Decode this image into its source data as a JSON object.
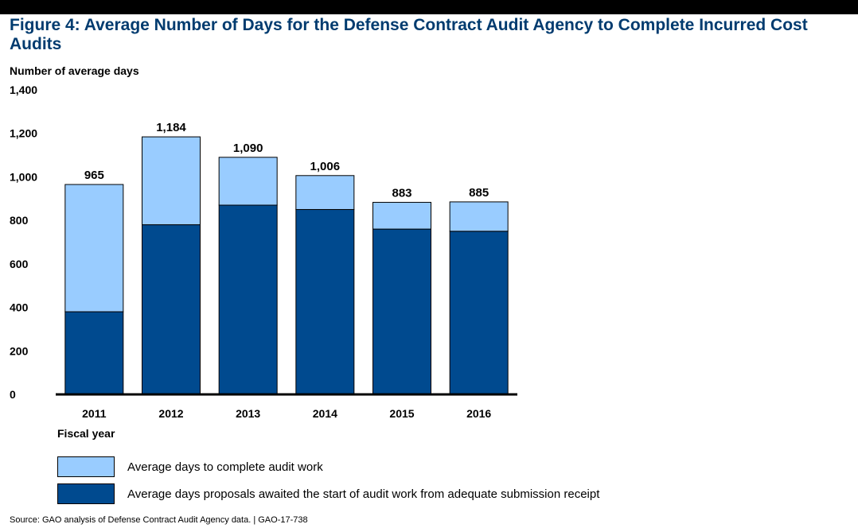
{
  "figure": {
    "title": "Figure 4: Average Number of Days for the Defense Contract Audit Agency to Complete Incurred Cost Audits",
    "source": "Source: GAO analysis of Defense Contract Audit Agency data.  |  GAO-17-738"
  },
  "chart_data": {
    "type": "bar",
    "stacked": true,
    "title": "",
    "ylabel": "Number of average days",
    "xlabel": "Fiscal year",
    "ylim": [
      0,
      1400
    ],
    "yticks": [
      0,
      200,
      400,
      600,
      800,
      1000,
      1200,
      1400
    ],
    "ytick_labels": [
      "0",
      "200",
      "400",
      "600",
      "800",
      "1,000",
      "1,200",
      "1,400"
    ],
    "categories": [
      "2011",
      "2012",
      "2013",
      "2014",
      "2015",
      "2016"
    ],
    "series": [
      {
        "name": "Average days proposals awaited the start of audit work from adequate submission receipt",
        "color": "#004a8f",
        "values": [
          380,
          780,
          870,
          850,
          760,
          750
        ]
      },
      {
        "name": "Average days to complete audit work",
        "color": "#99ccff",
        "values": [
          585,
          404,
          220,
          156,
          123,
          135
        ]
      }
    ],
    "totals": [
      965,
      1184,
      1090,
      1006,
      883,
      885
    ],
    "total_labels": [
      "965",
      "1,184",
      "1,090",
      "1,006",
      "883",
      "885"
    ],
    "grid": false,
    "legend_position": "bottom"
  }
}
